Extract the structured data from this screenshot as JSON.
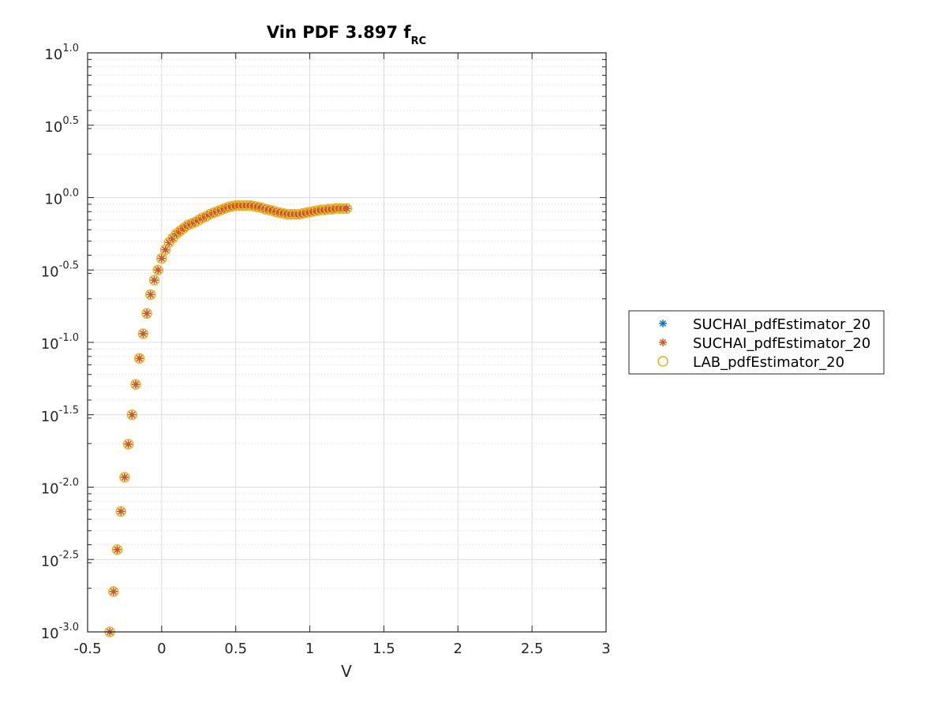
{
  "chart_data": {
    "type": "scatter",
    "title": "Vin PDF 3.897 f",
    "title_subscript": "RC",
    "xlabel": "V",
    "ylabel": "",
    "xlim": [
      -0.5,
      3
    ],
    "ylim": [
      0.001,
      10
    ],
    "y_scale": "log",
    "grid": true,
    "minor_grid": true,
    "x_ticks": [
      -0.5,
      0,
      0.5,
      1,
      1.5,
      2,
      2.5,
      3
    ],
    "x_tick_labels": [
      "-0.5",
      "0",
      "0.5",
      "1",
      "1.5",
      "2",
      "2.5",
      "3"
    ],
    "y_ticks": [
      1,
      0.5,
      0,
      -0.5,
      -1,
      -1.5,
      -2,
      -2.5,
      -3
    ],
    "y_tick_labels": [
      {
        "base": "10",
        "exp": "1.0"
      },
      {
        "base": "10",
        "exp": "0.5"
      },
      {
        "base": "10",
        "exp": "0.0"
      },
      {
        "base": "10",
        "exp": "-0.5"
      },
      {
        "base": "10",
        "exp": "-1.0"
      },
      {
        "base": "10",
        "exp": "-1.5"
      },
      {
        "base": "10",
        "exp": "-2.0"
      },
      {
        "base": "10",
        "exp": "-2.5"
      },
      {
        "base": "10",
        "exp": "-3.0"
      }
    ],
    "legend_position": "outside-right",
    "series": [
      {
        "name": "SUCHAI_pdfEstimator_20",
        "marker": "asterisk",
        "color": "#0072bd"
      },
      {
        "name": "SUCHAI_pdfEstimator_20",
        "marker": "asterisk",
        "color": "#d95319"
      },
      {
        "name": "LAB_pdfEstimator_20",
        "marker": "circle",
        "color": "#edb120"
      }
    ],
    "points": {
      "x": [
        -0.35,
        -0.325,
        -0.3,
        -0.275,
        -0.25,
        -0.225,
        -0.2,
        -0.175,
        -0.15,
        -0.125,
        -0.1,
        -0.075,
        -0.05,
        -0.025,
        0.0,
        0.025,
        0.05,
        0.075,
        0.1,
        0.125,
        0.15,
        0.175,
        0.2,
        0.225,
        0.25,
        0.275,
        0.3,
        0.325,
        0.35,
        0.375,
        0.4,
        0.425,
        0.45,
        0.475,
        0.5,
        0.525,
        0.55,
        0.575,
        0.6,
        0.625,
        0.65,
        0.675,
        0.7,
        0.725,
        0.75,
        0.775,
        0.8,
        0.825,
        0.85,
        0.875,
        0.9,
        0.925,
        0.95,
        0.975,
        1.0,
        1.025,
        1.05,
        1.075,
        1.1,
        1.125,
        1.15,
        1.175,
        1.2,
        1.225,
        1.25
      ],
      "y": [
        0.001,
        0.0019,
        0.0037,
        0.0068,
        0.0117,
        0.0198,
        0.0316,
        0.0513,
        0.0776,
        0.1148,
        0.1585,
        0.2138,
        0.2692,
        0.3162,
        0.3802,
        0.4365,
        0.4898,
        0.5248,
        0.5623,
        0.5888,
        0.6166,
        0.6457,
        0.6607,
        0.6761,
        0.6998,
        0.7244,
        0.7413,
        0.7674,
        0.7852,
        0.8035,
        0.8222,
        0.8414,
        0.861,
        0.871,
        0.881,
        0.881,
        0.881,
        0.881,
        0.881,
        0.871,
        0.861,
        0.8511,
        0.8318,
        0.8222,
        0.8128,
        0.7943,
        0.7852,
        0.7762,
        0.7674,
        0.7674,
        0.7674,
        0.7674,
        0.7762,
        0.7852,
        0.7943,
        0.8035,
        0.8128,
        0.8222,
        0.8222,
        0.8318,
        0.8318,
        0.8414,
        0.8414,
        0.8414,
        0.8414
      ]
    }
  }
}
